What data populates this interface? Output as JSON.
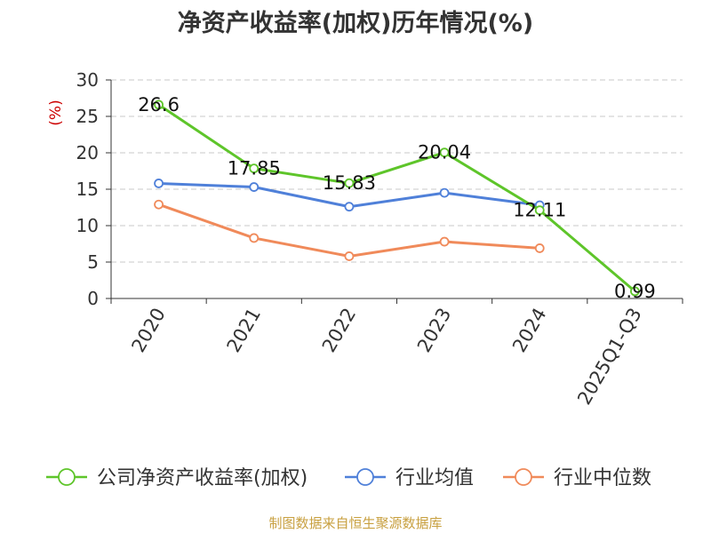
{
  "chart_data": {
    "type": "line",
    "title": "净资产收益率(加权)历年情况(%)",
    "ylabel": "(%)",
    "xlabel": "",
    "categories": [
      "2020",
      "2021",
      "2022",
      "2023",
      "2024",
      "2025Q1-Q3"
    ],
    "y_ticks": [
      "0",
      "5",
      "10",
      "15",
      "20",
      "25",
      "30"
    ],
    "ylim": [
      0,
      30
    ],
    "grid": true,
    "legend_position": "bottom",
    "series": [
      {
        "name": "公司净资产收益率(加权)",
        "color": "#5ec52a",
        "values": [
          26.6,
          17.85,
          15.83,
          20.04,
          12.11,
          0.99
        ],
        "labels": [
          "26.6",
          "17.85",
          "15.83",
          "20.04",
          "12.11",
          "0.99"
        ]
      },
      {
        "name": "行业均值",
        "color": "#4f80d9",
        "values": [
          15.8,
          15.3,
          12.6,
          14.5,
          12.8,
          null
        ]
      },
      {
        "name": "行业中位数",
        "color": "#f08a5a",
        "values": [
          12.9,
          8.3,
          5.8,
          7.8,
          6.9,
          null
        ]
      }
    ]
  },
  "source": "制图数据来自恒生聚源数据库"
}
